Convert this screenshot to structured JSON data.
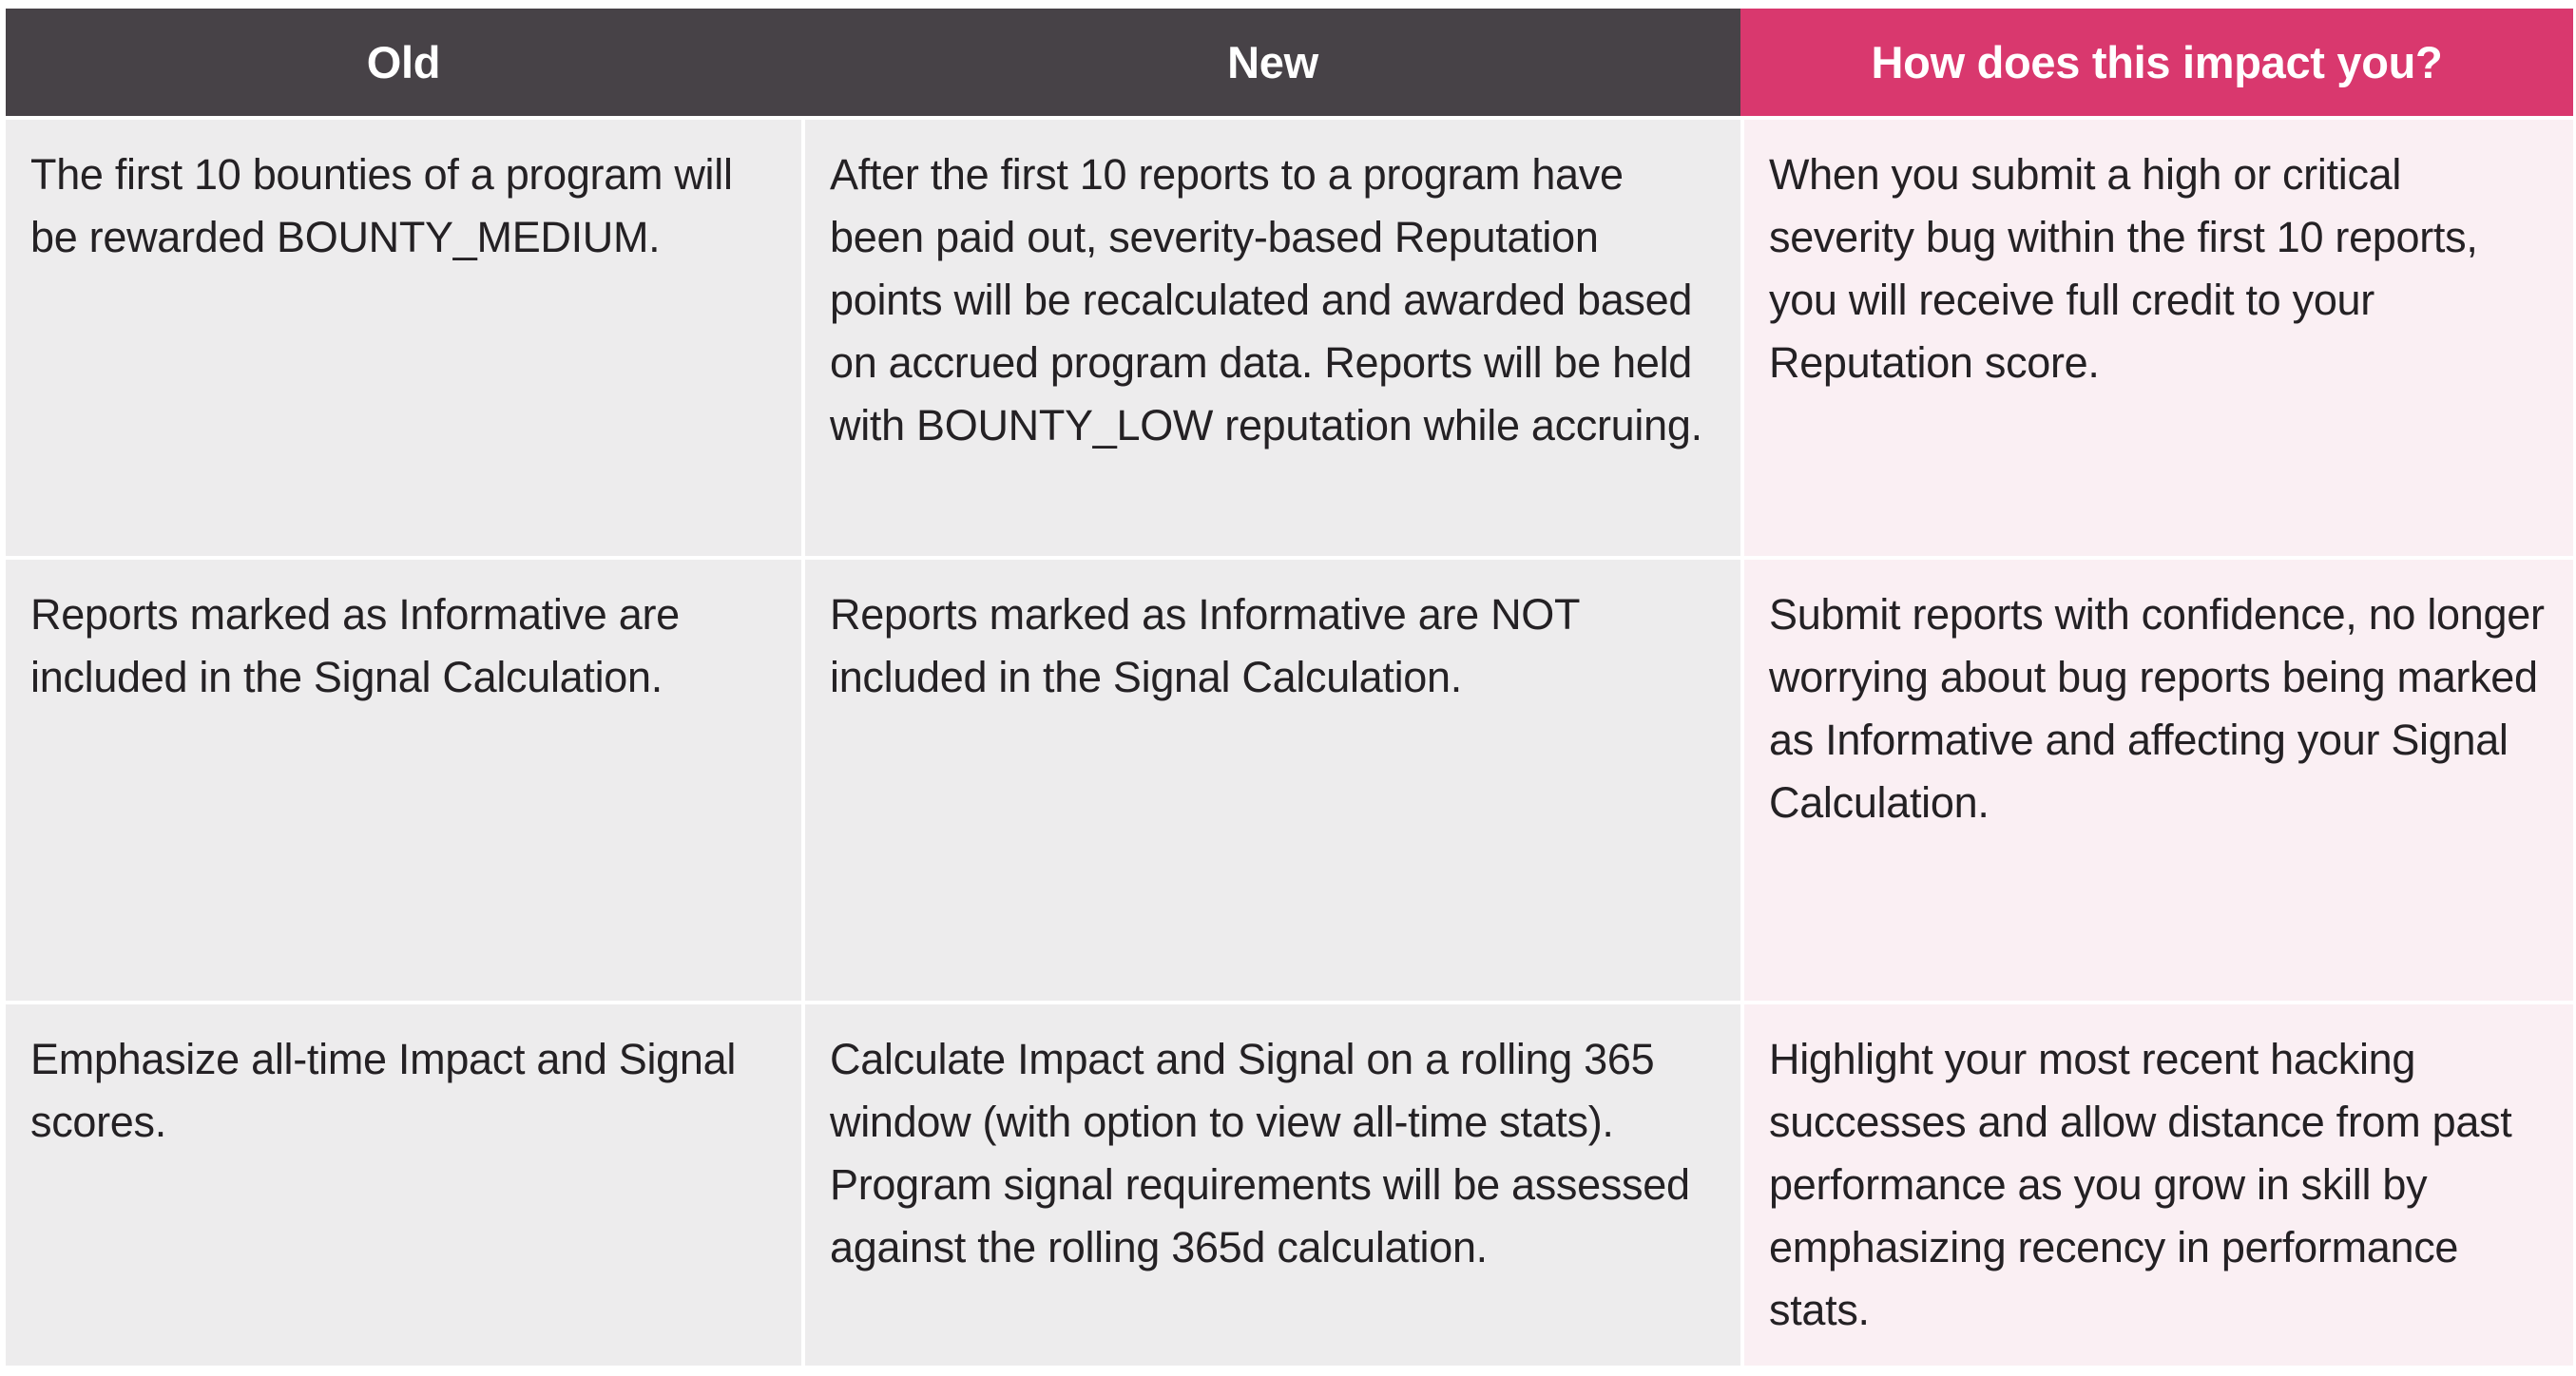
{
  "colors": {
    "header_dark_bg": "#474247",
    "header_pink_bg": "#D9386E",
    "cell_gray_bg": "#EDECED",
    "cell_pink_bg": "#FAEFF3",
    "header_text": "#FFFFFF",
    "body_text": "#242124",
    "page_bg": "#FFFFFF"
  },
  "table": {
    "columns": [
      {
        "label": "Old",
        "theme": "dark"
      },
      {
        "label": "New",
        "theme": "dark"
      },
      {
        "label": "How does this impact you?",
        "theme": "pink"
      }
    ],
    "rows": [
      {
        "old": "The first 10 bounties of a program will be rewarded BOUNTY_MEDIUM.",
        "new": "After the first 10 reports to a program have been paid out, severity-based Reputation points will be recalculated and awarded based on accrued program data. Reports will be held with BOUNTY_LOW reputation while accruing.",
        "impact": "When you submit a high or critical severity bug within the first 10 reports, you will receive full credit to your Reputation score."
      },
      {
        "old": "Reports marked as Informative are included in the Signal Calculation.",
        "new": "Reports marked as Informative are NOT included in the Signal Calculation.",
        "impact": "Submit reports with confidence, no longer worrying about bug reports being marked as Informative and affecting your Signal Calculation."
      },
      {
        "old": "Emphasize all-time Impact and Signal scores.",
        "new": "Calculate Impact and Signal on a rolling 365 window (with option to view all-time stats). Program signal requirements will be assessed against the rolling 365d calculation.",
        "impact": "Highlight your most recent hacking successes and allow distance from past performance as you grow in skill by emphasizing recency in performance stats."
      }
    ]
  }
}
